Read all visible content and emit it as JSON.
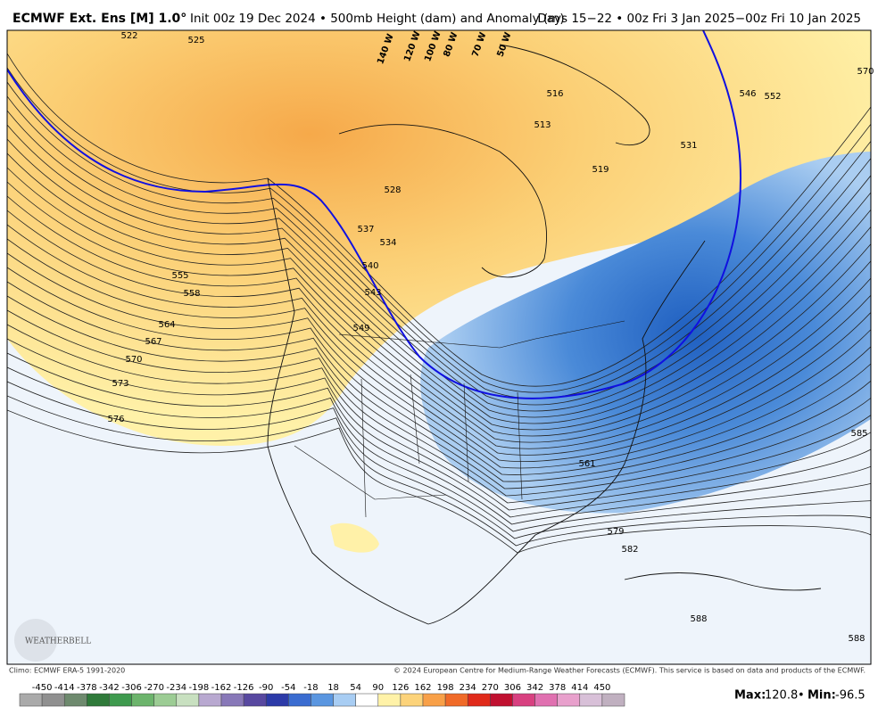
{
  "header": {
    "title_bold": "ECMWF Ext. Ens [M] 1.0°",
    "title_rest": "Init 00z 19 Dec 2024 • 500mb Height (dam) and Anomaly (m)",
    "valid": "Days 15−22 • 00z Fri 3 Jan 2025−00z Fri 10 Jan 2025"
  },
  "map": {
    "contour_labels": [
      522,
      525,
      516,
      513,
      519,
      528,
      531,
      546,
      552,
      570,
      537,
      534,
      540,
      543,
      549,
      555,
      558,
      564,
      567,
      570,
      573,
      576,
      561,
      579,
      582,
      585,
      588,
      588
    ],
    "longitude_labels": [
      "140 W",
      "120 W",
      "100 W",
      "80 W",
      "70 W",
      "50 W"
    ],
    "logo": "WEATHERBELL"
  },
  "footer": {
    "climo": "Climo: ECMWF ERA-5 1991-2020",
    "copyright": "© 2024 European Centre for Medium-Range Weather Forecasts (ECMWF). This service is based on data and products of the ECMWF."
  },
  "colorbar": {
    "ticks": [
      -450,
      -414,
      -378,
      -342,
      -306,
      -270,
      -234,
      -198,
      -162,
      -126,
      -90,
      -54,
      -18,
      18,
      54,
      90,
      126,
      162,
      198,
      234,
      270,
      306,
      342,
      378,
      414,
      450
    ]
  },
  "stats": {
    "max_label": "Max:",
    "max": 120.8,
    "separator": "•",
    "min_label": "Min:",
    "min": -96.5
  }
}
